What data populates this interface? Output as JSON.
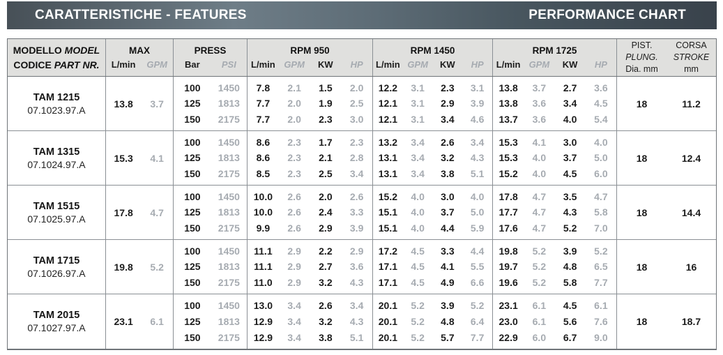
{
  "banner": {
    "left_title": "CARATTERISTICHE - FEATURES",
    "right_title": "PERFORMANCE CHART"
  },
  "colors": {
    "banner_dark": "#39424b",
    "banner_mid": "#6e7d87",
    "banner_text": "#ffffff",
    "header_bg": "#e0e0de",
    "value_black": "#1c1c1c",
    "value_gray": "#a6abb1",
    "grid_line": "#8a8f94"
  },
  "table": {
    "header": {
      "model_top_regular": "MODELLO",
      "model_top_italic": "MODEL",
      "model_bottom_regular": "CODICE",
      "model_bottom_italic": "PART NR.",
      "max_title": "MAX",
      "press_title": "PRESS",
      "rpm950_title": "RPM 950",
      "rpm1450_title": "RPM 1450",
      "rpm1725_title": "RPM 1725",
      "unit_lmin": "L/min",
      "unit_gpm": "GPM",
      "unit_kw": "KW",
      "unit_hp": "HP",
      "unit_bar": "Bar",
      "unit_psi": "PSI",
      "pist_line1": "PIST.",
      "pist_line2": "PLUNG.",
      "pist_line3": "Dia. mm",
      "corsa_line1": "CORSA",
      "corsa_line2": "STROKE",
      "corsa_line3": "mm"
    },
    "rows": [
      {
        "model": "TAM 1215",
        "code": "07.1023.97.A",
        "max_lmin": "13.8",
        "max_gpm": "3.7",
        "press": [
          [
            "100",
            "1450"
          ],
          [
            "125",
            "1813"
          ],
          [
            "150",
            "2175"
          ]
        ],
        "rpm950": [
          [
            "7.8",
            "2.1",
            "1.5",
            "2.0"
          ],
          [
            "7.7",
            "2.0",
            "1.9",
            "2.5"
          ],
          [
            "7.7",
            "2.0",
            "2.3",
            "3.0"
          ]
        ],
        "rpm1450": [
          [
            "12.2",
            "3.1",
            "2.3",
            "3.1"
          ],
          [
            "12.1",
            "3.1",
            "2.9",
            "3.9"
          ],
          [
            "12.1",
            "3.1",
            "3.4",
            "4.6"
          ]
        ],
        "rpm1725": [
          [
            "13.8",
            "3.7",
            "2.7",
            "3.6"
          ],
          [
            "13.8",
            "3.6",
            "3.4",
            "4.5"
          ],
          [
            "13.7",
            "3.6",
            "4.0",
            "5.4"
          ]
        ],
        "plunger": "18",
        "stroke": "11.2"
      },
      {
        "model": "TAM 1315",
        "code": "07.1024.97.A",
        "max_lmin": "15.3",
        "max_gpm": "4.1",
        "press": [
          [
            "100",
            "1450"
          ],
          [
            "125",
            "1813"
          ],
          [
            "150",
            "2175"
          ]
        ],
        "rpm950": [
          [
            "8.6",
            "2.3",
            "1.7",
            "2.3"
          ],
          [
            "8.6",
            "2.3",
            "2.1",
            "2.8"
          ],
          [
            "8.5",
            "2.3",
            "2.5",
            "3.4"
          ]
        ],
        "rpm1450": [
          [
            "13.2",
            "3.4",
            "2.6",
            "3.4"
          ],
          [
            "13.1",
            "3.4",
            "3.2",
            "4.3"
          ],
          [
            "13.1",
            "3.4",
            "3.8",
            "5.1"
          ]
        ],
        "rpm1725": [
          [
            "15.3",
            "4.1",
            "3.0",
            "4.0"
          ],
          [
            "15.3",
            "4.0",
            "3.7",
            "5.0"
          ],
          [
            "15.2",
            "4.0",
            "4.5",
            "6.0"
          ]
        ],
        "plunger": "18",
        "stroke": "12.4"
      },
      {
        "model": "TAM 1515",
        "code": "07.1025.97.A",
        "max_lmin": "17.8",
        "max_gpm": "4.7",
        "press": [
          [
            "100",
            "1450"
          ],
          [
            "125",
            "1813"
          ],
          [
            "150",
            "2175"
          ]
        ],
        "rpm950": [
          [
            "10.0",
            "2.6",
            "2.0",
            "2.6"
          ],
          [
            "10.0",
            "2.6",
            "2.4",
            "3.3"
          ],
          [
            "9.9",
            "2.6",
            "2.9",
            "3.9"
          ]
        ],
        "rpm1450": [
          [
            "15.2",
            "4.0",
            "3.0",
            "4.0"
          ],
          [
            "15.1",
            "4.0",
            "3.7",
            "5.0"
          ],
          [
            "15.1",
            "4.0",
            "4.4",
            "5.9"
          ]
        ],
        "rpm1725": [
          [
            "17.8",
            "4.7",
            "3.5",
            "4.7"
          ],
          [
            "17.7",
            "4.7",
            "4.3",
            "5.8"
          ],
          [
            "17.6",
            "4.7",
            "5.2",
            "7.0"
          ]
        ],
        "plunger": "18",
        "stroke": "14.4"
      },
      {
        "model": "TAM 1715",
        "code": "07.1026.97.A",
        "max_lmin": "19.8",
        "max_gpm": "5.2",
        "press": [
          [
            "100",
            "1450"
          ],
          [
            "125",
            "1813"
          ],
          [
            "150",
            "2175"
          ]
        ],
        "rpm950": [
          [
            "11.1",
            "2.9",
            "2.2",
            "2.9"
          ],
          [
            "11.1",
            "2.9",
            "2.7",
            "3.6"
          ],
          [
            "11.0",
            "2.9",
            "3.2",
            "4.3"
          ]
        ],
        "rpm1450": [
          [
            "17.2",
            "4.5",
            "3.3",
            "4.4"
          ],
          [
            "17.1",
            "4.5",
            "4.1",
            "5.5"
          ],
          [
            "17.1",
            "4.5",
            "4.9",
            "6.6"
          ]
        ],
        "rpm1725": [
          [
            "19.8",
            "5.2",
            "3.9",
            "5.2"
          ],
          [
            "19.7",
            "5.2",
            "4.8",
            "6.5"
          ],
          [
            "19.6",
            "5.2",
            "5.8",
            "7.7"
          ]
        ],
        "plunger": "18",
        "stroke": "16"
      },
      {
        "model": "TAM 2015",
        "code": "07.1027.97.A",
        "max_lmin": "23.1",
        "max_gpm": "6.1",
        "press": [
          [
            "100",
            "1450"
          ],
          [
            "125",
            "1813"
          ],
          [
            "150",
            "2175"
          ]
        ],
        "rpm950": [
          [
            "13.0",
            "3.4",
            "2.6",
            "3.4"
          ],
          [
            "12.9",
            "3.4",
            "3.2",
            "4.3"
          ],
          [
            "12.9",
            "3.4",
            "3.8",
            "5.1"
          ]
        ],
        "rpm1450": [
          [
            "20.1",
            "5.2",
            "3.9",
            "5.2"
          ],
          [
            "20.1",
            "5.2",
            "4.8",
            "6.4"
          ],
          [
            "20.1",
            "5.2",
            "5.7",
            "7.7"
          ]
        ],
        "rpm1725": [
          [
            "23.1",
            "6.1",
            "4.5",
            "6.1"
          ],
          [
            "23.0",
            "6.1",
            "5.6",
            "7.6"
          ],
          [
            "22.9",
            "6.0",
            "6.7",
            "9.0"
          ]
        ],
        "plunger": "18",
        "stroke": "18.7"
      }
    ]
  }
}
